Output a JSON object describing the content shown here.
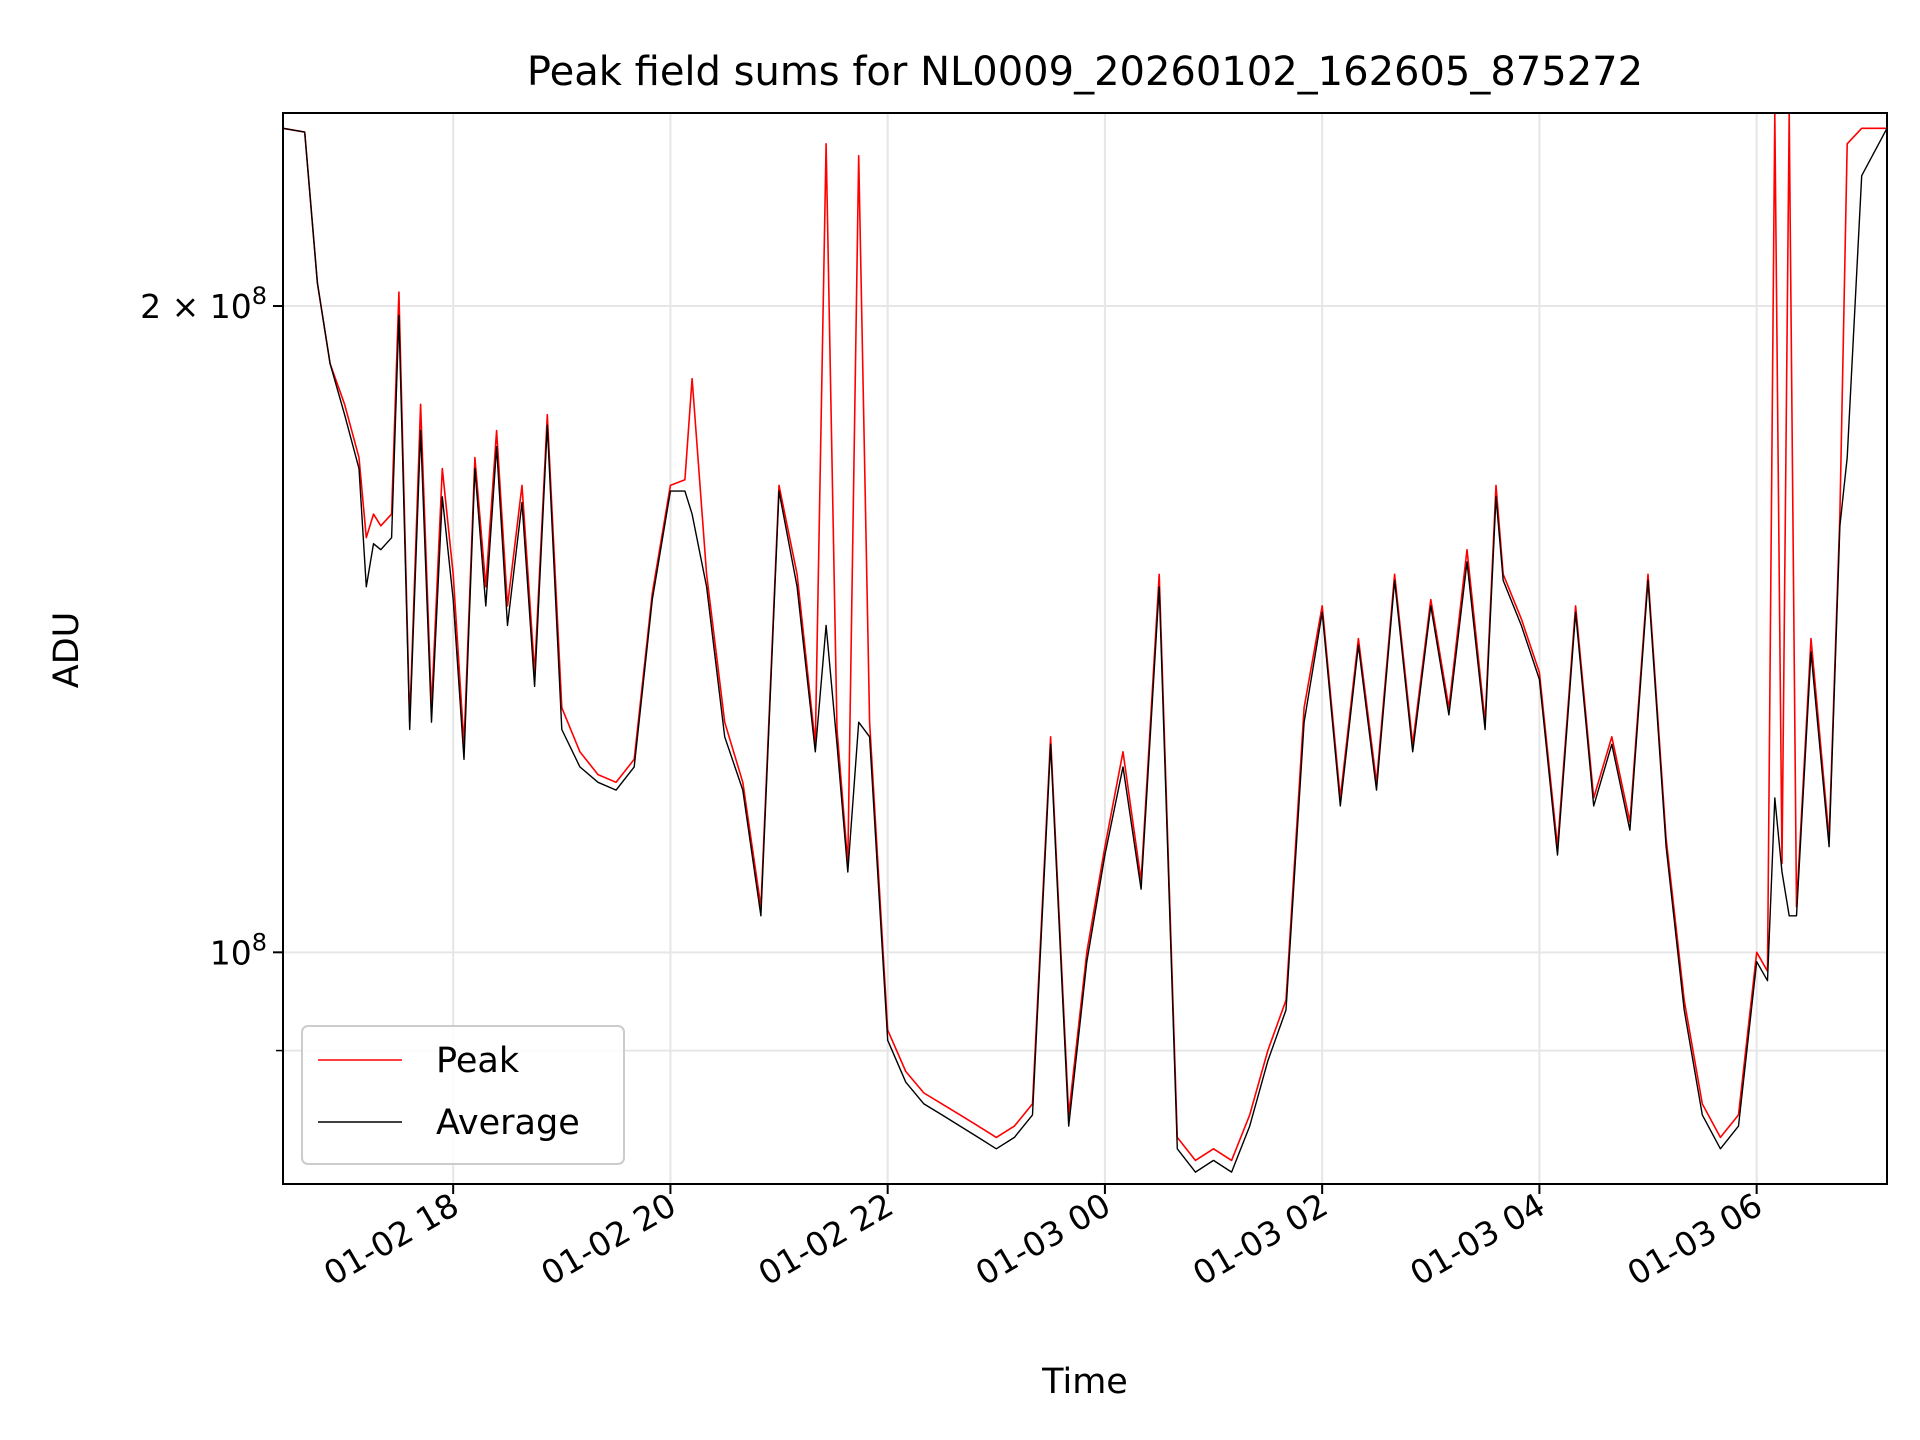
{
  "chart_data": {
    "type": "line",
    "title": "Peak field sums for NL0009_20260102_162605_875272",
    "xlabel": "Time",
    "ylabel": "ADU",
    "yscale": "log",
    "ylim": [
      78000000,
      246000000
    ],
    "xlim": [
      "2026-01-02 16:26",
      "2026-01-03 07:12"
    ],
    "grid": true,
    "legend_position": "lower left",
    "x_ticks": [
      "01-02 18",
      "01-02 20",
      "01-02 22",
      "01-03 00",
      "01-03 02",
      "01-03 04",
      "01-03 06"
    ],
    "y_ticks": [
      {
        "value": 100000000,
        "mantissa": "",
        "exponent": "8"
      },
      {
        "value": 200000000,
        "mantissa": "2",
        "exponent": "8"
      }
    ],
    "series": [
      {
        "name": "Peak",
        "color": "#ff0000",
        "points": [
          [
            "2026-01-02 16:26",
            242000000
          ],
          [
            "2026-01-02 16:38",
            241000000
          ],
          [
            "2026-01-02 16:45",
            205000000
          ],
          [
            "2026-01-02 16:52",
            188000000
          ],
          [
            "2026-01-02 17:00",
            180000000
          ],
          [
            "2026-01-02 17:08",
            170000000
          ],
          [
            "2026-01-02 17:12",
            156000000
          ],
          [
            "2026-01-02 17:16",
            160000000
          ],
          [
            "2026-01-02 17:20",
            158000000
          ],
          [
            "2026-01-02 17:26",
            160000000
          ],
          [
            "2026-01-02 17:30",
            203000000
          ],
          [
            "2026-01-02 17:36",
            128000000
          ],
          [
            "2026-01-02 17:42",
            180000000
          ],
          [
            "2026-01-02 17:48",
            130000000
          ],
          [
            "2026-01-02 17:54",
            168000000
          ],
          [
            "2026-01-02 18:00",
            150000000
          ],
          [
            "2026-01-02 18:06",
            125000000
          ],
          [
            "2026-01-02 18:12",
            170000000
          ],
          [
            "2026-01-02 18:18",
            148000000
          ],
          [
            "2026-01-02 18:24",
            175000000
          ],
          [
            "2026-01-02 18:30",
            145000000
          ],
          [
            "2026-01-02 18:38",
            165000000
          ],
          [
            "2026-01-02 18:45",
            135000000
          ],
          [
            "2026-01-02 18:52",
            178000000
          ],
          [
            "2026-01-02 19:00",
            130000000
          ],
          [
            "2026-01-02 19:10",
            124000000
          ],
          [
            "2026-01-02 19:20",
            121000000
          ],
          [
            "2026-01-02 19:30",
            120000000
          ],
          [
            "2026-01-02 19:40",
            123000000
          ],
          [
            "2026-01-02 19:50",
            147000000
          ],
          [
            "2026-01-02 20:00",
            165000000
          ],
          [
            "2026-01-02 20:08",
            166000000
          ],
          [
            "2026-01-02 20:12",
            185000000
          ],
          [
            "2026-01-02 20:20",
            150000000
          ],
          [
            "2026-01-02 20:30",
            128000000
          ],
          [
            "2026-01-02 20:40",
            120000000
          ],
          [
            "2026-01-02 20:50",
            105000000
          ],
          [
            "2026-01-02 21:00",
            165000000
          ],
          [
            "2026-01-02 21:10",
            150000000
          ],
          [
            "2026-01-02 21:20",
            125000000
          ],
          [
            "2026-01-02 21:26",
            238000000
          ],
          [
            "2026-01-02 21:32",
            127000000
          ],
          [
            "2026-01-02 21:38",
            110000000
          ],
          [
            "2026-01-02 21:44",
            235000000
          ],
          [
            "2026-01-02 21:50",
            128000000
          ],
          [
            "2026-01-02 22:00",
            92000000
          ],
          [
            "2026-01-02 22:10",
            88000000
          ],
          [
            "2026-01-02 22:20",
            86000000
          ],
          [
            "2026-01-02 22:30",
            85000000
          ],
          [
            "2026-01-02 22:40",
            84000000
          ],
          [
            "2026-01-02 22:50",
            83000000
          ],
          [
            "2026-01-02 23:00",
            82000000
          ],
          [
            "2026-01-02 23:10",
            83000000
          ],
          [
            "2026-01-02 23:20",
            85000000
          ],
          [
            "2026-01-02 23:30",
            126000000
          ],
          [
            "2026-01-02 23:40",
            84000000
          ],
          [
            "2026-01-02 23:50",
            100000000
          ],
          [
            "2026-01-03 00:00",
            112000000
          ],
          [
            "2026-01-03 00:10",
            124000000
          ],
          [
            "2026-01-03 00:20",
            108000000
          ],
          [
            "2026-01-03 00:30",
            150000000
          ],
          [
            "2026-01-03 00:40",
            82000000
          ],
          [
            "2026-01-03 00:50",
            80000000
          ],
          [
            "2026-01-03 01:00",
            81000000
          ],
          [
            "2026-01-03 01:10",
            80000000
          ],
          [
            "2026-01-03 01:20",
            84000000
          ],
          [
            "2026-01-03 01:30",
            90000000
          ],
          [
            "2026-01-03 01:40",
            95000000
          ],
          [
            "2026-01-03 01:50",
            130000000
          ],
          [
            "2026-01-03 02:00",
            145000000
          ],
          [
            "2026-01-03 02:10",
            118000000
          ],
          [
            "2026-01-03 02:20",
            140000000
          ],
          [
            "2026-01-03 02:30",
            120000000
          ],
          [
            "2026-01-03 02:40",
            150000000
          ],
          [
            "2026-01-03 02:50",
            125000000
          ],
          [
            "2026-01-03 03:00",
            146000000
          ],
          [
            "2026-01-03 03:10",
            130000000
          ],
          [
            "2026-01-03 03:20",
            154000000
          ],
          [
            "2026-01-03 03:30",
            128000000
          ],
          [
            "2026-01-03 03:36",
            165000000
          ],
          [
            "2026-01-03 03:40",
            150000000
          ],
          [
            "2026-01-03 03:50",
            143000000
          ],
          [
            "2026-01-03 04:00",
            135000000
          ],
          [
            "2026-01-03 04:10",
            112000000
          ],
          [
            "2026-01-03 04:20",
            145000000
          ],
          [
            "2026-01-03 04:30",
            118000000
          ],
          [
            "2026-01-03 04:40",
            126000000
          ],
          [
            "2026-01-03 04:50",
            115000000
          ],
          [
            "2026-01-03 05:00",
            150000000
          ],
          [
            "2026-01-03 05:10",
            113000000
          ],
          [
            "2026-01-03 05:20",
            95000000
          ],
          [
            "2026-01-03 05:30",
            85000000
          ],
          [
            "2026-01-03 05:40",
            82000000
          ],
          [
            "2026-01-03 05:50",
            84000000
          ],
          [
            "2026-01-03 06:00",
            100000000
          ],
          [
            "2026-01-03 06:06",
            98000000
          ],
          [
            "2026-01-03 06:10",
            246000000
          ],
          [
            "2026-01-03 06:14",
            110000000
          ],
          [
            "2026-01-03 06:18",
            246000000
          ],
          [
            "2026-01-03 06:22",
            105000000
          ],
          [
            "2026-01-03 06:30",
            140000000
          ],
          [
            "2026-01-03 06:40",
            113000000
          ],
          [
            "2026-01-03 06:46",
            160000000
          ],
          [
            "2026-01-03 06:50",
            238000000
          ],
          [
            "2026-01-03 06:58",
            242000000
          ],
          [
            "2026-01-03 07:12",
            242000000
          ]
        ]
      },
      {
        "name": "Average",
        "color": "#000000",
        "points": [
          [
            "2026-01-02 16:26",
            242000000
          ],
          [
            "2026-01-02 16:38",
            241000000
          ],
          [
            "2026-01-02 16:45",
            205000000
          ],
          [
            "2026-01-02 16:52",
            188000000
          ],
          [
            "2026-01-02 17:00",
            178000000
          ],
          [
            "2026-01-02 17:08",
            168000000
          ],
          [
            "2026-01-02 17:12",
            148000000
          ],
          [
            "2026-01-02 17:16",
            155000000
          ],
          [
            "2026-01-02 17:20",
            154000000
          ],
          [
            "2026-01-02 17:26",
            156000000
          ],
          [
            "2026-01-02 17:30",
            198000000
          ],
          [
            "2026-01-02 17:36",
            127000000
          ],
          [
            "2026-01-02 17:42",
            175000000
          ],
          [
            "2026-01-02 17:48",
            128000000
          ],
          [
            "2026-01-02 17:54",
            163000000
          ],
          [
            "2026-01-02 18:00",
            146000000
          ],
          [
            "2026-01-02 18:06",
            123000000
          ],
          [
            "2026-01-02 18:12",
            168000000
          ],
          [
            "2026-01-02 18:18",
            145000000
          ],
          [
            "2026-01-02 18:24",
            172000000
          ],
          [
            "2026-01-02 18:30",
            142000000
          ],
          [
            "2026-01-02 18:38",
            162000000
          ],
          [
            "2026-01-02 18:45",
            133000000
          ],
          [
            "2026-01-02 18:52",
            176000000
          ],
          [
            "2026-01-02 19:00",
            127000000
          ],
          [
            "2026-01-02 19:10",
            122000000
          ],
          [
            "2026-01-02 19:20",
            120000000
          ],
          [
            "2026-01-02 19:30",
            119000000
          ],
          [
            "2026-01-02 19:40",
            122000000
          ],
          [
            "2026-01-02 19:50",
            146000000
          ],
          [
            "2026-01-02 20:00",
            164000000
          ],
          [
            "2026-01-02 20:08",
            164000000
          ],
          [
            "2026-01-02 20:12",
            160000000
          ],
          [
            "2026-01-02 20:20",
            148000000
          ],
          [
            "2026-01-02 20:30",
            126000000
          ],
          [
            "2026-01-02 20:40",
            119000000
          ],
          [
            "2026-01-02 20:50",
            104000000
          ],
          [
            "2026-01-02 21:00",
            164000000
          ],
          [
            "2026-01-02 21:10",
            148000000
          ],
          [
            "2026-01-02 21:20",
            124000000
          ],
          [
            "2026-01-02 21:26",
            142000000
          ],
          [
            "2026-01-02 21:32",
            125000000
          ],
          [
            "2026-01-02 21:38",
            109000000
          ],
          [
            "2026-01-02 21:44",
            128000000
          ],
          [
            "2026-01-02 21:50",
            126000000
          ],
          [
            "2026-01-02 22:00",
            91000000
          ],
          [
            "2026-01-02 22:10",
            87000000
          ],
          [
            "2026-01-02 22:20",
            85000000
          ],
          [
            "2026-01-02 22:30",
            84000000
          ],
          [
            "2026-01-02 22:40",
            83000000
          ],
          [
            "2026-01-02 22:50",
            82000000
          ],
          [
            "2026-01-02 23:00",
            81000000
          ],
          [
            "2026-01-02 23:10",
            82000000
          ],
          [
            "2026-01-02 23:20",
            84000000
          ],
          [
            "2026-01-02 23:30",
            125000000
          ],
          [
            "2026-01-02 23:40",
            83000000
          ],
          [
            "2026-01-02 23:50",
            99000000
          ],
          [
            "2026-01-03 00:00",
            111000000
          ],
          [
            "2026-01-03 00:10",
            122000000
          ],
          [
            "2026-01-03 00:20",
            107000000
          ],
          [
            "2026-01-03 00:30",
            148000000
          ],
          [
            "2026-01-03 00:40",
            81000000
          ],
          [
            "2026-01-03 00:50",
            79000000
          ],
          [
            "2026-01-03 01:00",
            80000000
          ],
          [
            "2026-01-03 01:10",
            79000000
          ],
          [
            "2026-01-03 01:20",
            83000000
          ],
          [
            "2026-01-03 01:30",
            89000000
          ],
          [
            "2026-01-03 01:40",
            94000000
          ],
          [
            "2026-01-03 01:50",
            128000000
          ],
          [
            "2026-01-03 02:00",
            144000000
          ],
          [
            "2026-01-03 02:10",
            117000000
          ],
          [
            "2026-01-03 02:20",
            139000000
          ],
          [
            "2026-01-03 02:30",
            119000000
          ],
          [
            "2026-01-03 02:40",
            149000000
          ],
          [
            "2026-01-03 02:50",
            124000000
          ],
          [
            "2026-01-03 03:00",
            145000000
          ],
          [
            "2026-01-03 03:10",
            129000000
          ],
          [
            "2026-01-03 03:20",
            152000000
          ],
          [
            "2026-01-03 03:30",
            127000000
          ],
          [
            "2026-01-03 03:36",
            163000000
          ],
          [
            "2026-01-03 03:40",
            149000000
          ],
          [
            "2026-01-03 03:50",
            142000000
          ],
          [
            "2026-01-03 04:00",
            134000000
          ],
          [
            "2026-01-03 04:10",
            111000000
          ],
          [
            "2026-01-03 04:20",
            144000000
          ],
          [
            "2026-01-03 04:30",
            117000000
          ],
          [
            "2026-01-03 04:40",
            125000000
          ],
          [
            "2026-01-03 04:50",
            114000000
          ],
          [
            "2026-01-03 05:00",
            149000000
          ],
          [
            "2026-01-03 05:10",
            112000000
          ],
          [
            "2026-01-03 05:20",
            94000000
          ],
          [
            "2026-01-03 05:30",
            84000000
          ],
          [
            "2026-01-03 05:40",
            81000000
          ],
          [
            "2026-01-03 05:50",
            83000000
          ],
          [
            "2026-01-03 06:00",
            99000000
          ],
          [
            "2026-01-03 06:06",
            97000000
          ],
          [
            "2026-01-03 06:10",
            118000000
          ],
          [
            "2026-01-03 06:14",
            109000000
          ],
          [
            "2026-01-03 06:18",
            104000000
          ],
          [
            "2026-01-03 06:22",
            104000000
          ],
          [
            "2026-01-03 06:30",
            138000000
          ],
          [
            "2026-01-03 06:40",
            112000000
          ],
          [
            "2026-01-03 06:46",
            158000000
          ],
          [
            "2026-01-03 06:50",
            170000000
          ],
          [
            "2026-01-03 06:58",
            230000000
          ],
          [
            "2026-01-03 07:12",
            242000000
          ]
        ]
      }
    ]
  }
}
